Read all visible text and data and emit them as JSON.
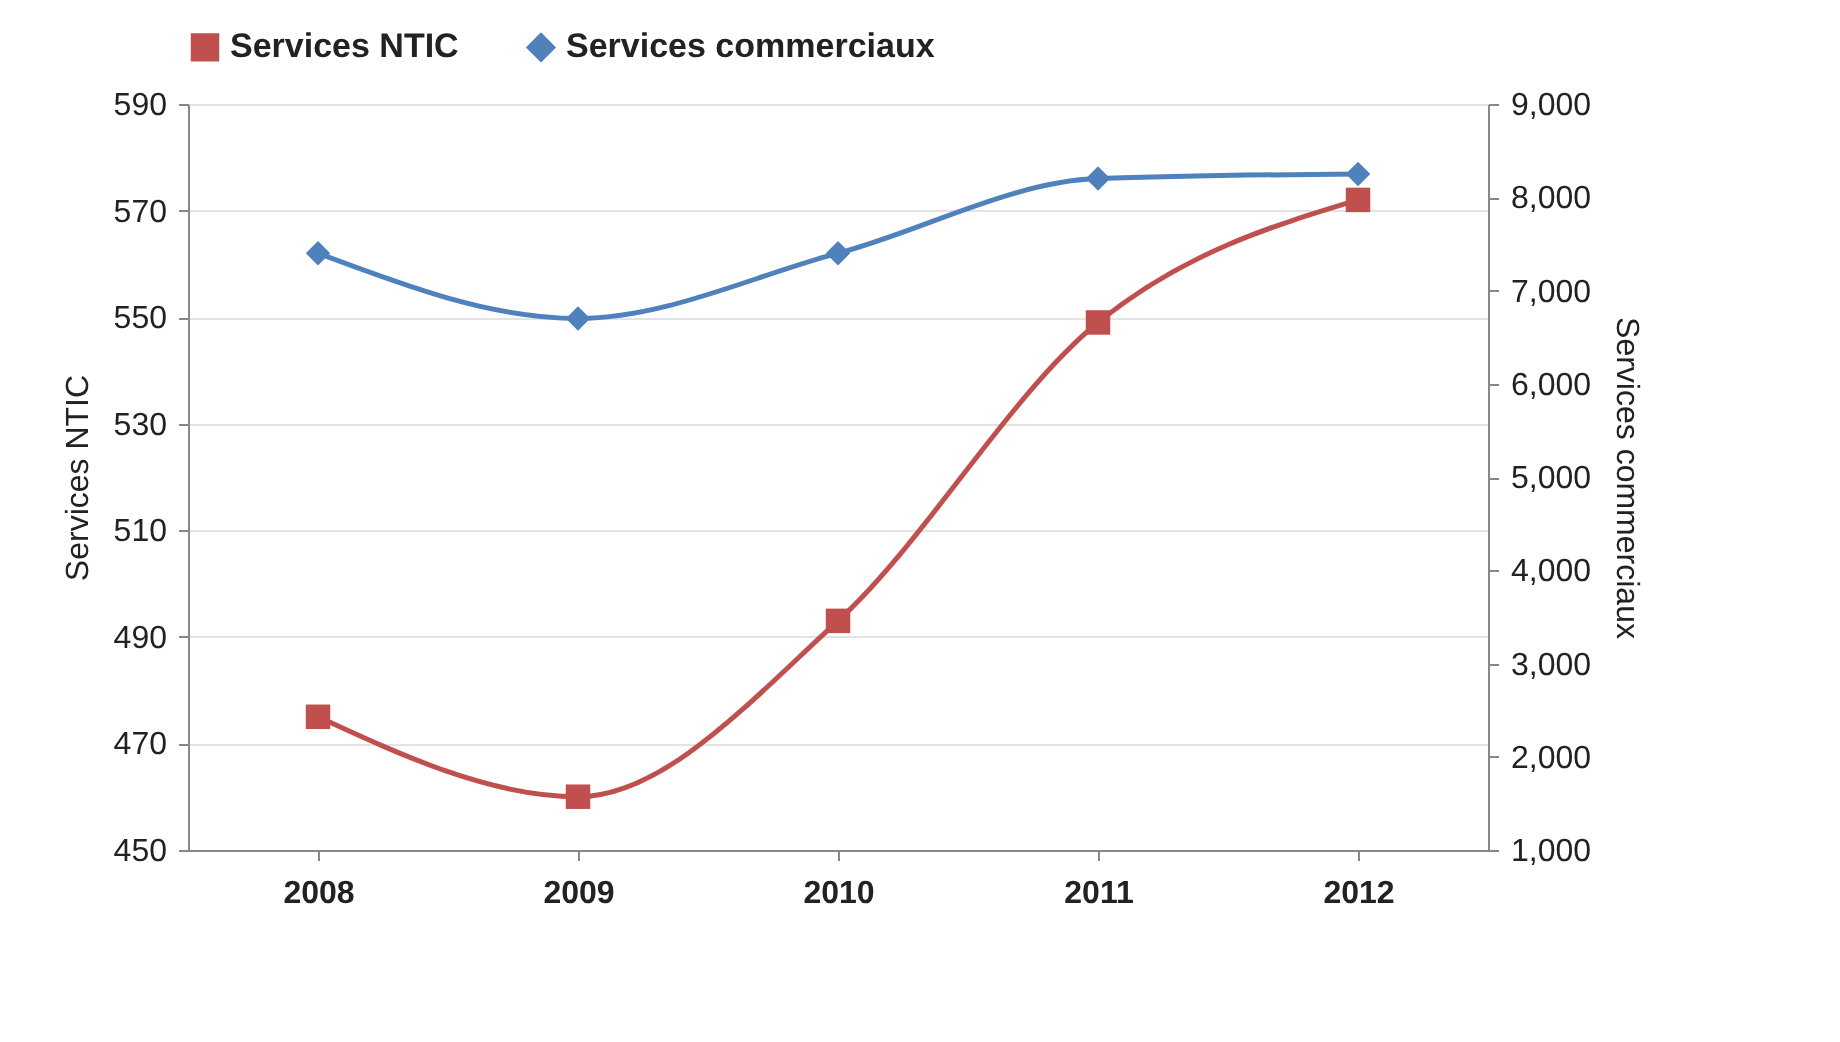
{
  "chart_data": {
    "type": "line",
    "categories": [
      "2008",
      "2009",
      "2010",
      "2011",
      "2012"
    ],
    "series": [
      {
        "name": "Services NTIC",
        "color": "#c0504d",
        "marker": "square",
        "values": [
          475,
          460,
          493,
          549,
          572
        ]
      },
      {
        "name": "Services commerciaux",
        "color": "#4f81bd",
        "marker": "diamond",
        "axis": "y2",
        "values": [
          7400,
          6700,
          7400,
          8200,
          8250
        ]
      }
    ],
    "ylabel": "Services NTIC",
    "y2label": "Services commerciaux",
    "ylim": [
      450,
      590
    ],
    "yticks": [
      450,
      470,
      490,
      510,
      530,
      550,
      570,
      590
    ],
    "y2lim": [
      1000,
      9000
    ],
    "y2ticks": [
      {
        "value": 1000,
        "label": "1,000"
      },
      {
        "value": 2000,
        "label": "2,000"
      },
      {
        "value": 3000,
        "label": "3,000"
      },
      {
        "value": 4000,
        "label": "4,000"
      },
      {
        "value": 5000,
        "label": "5,000"
      },
      {
        "value": 6000,
        "label": "6,000"
      },
      {
        "value": 7000,
        "label": "7,000"
      },
      {
        "value": 8000,
        "label": "8,000"
      },
      {
        "value": 9000,
        "label": "9,000"
      }
    ],
    "grid": "y",
    "legend": "top",
    "line_style": "solid"
  }
}
